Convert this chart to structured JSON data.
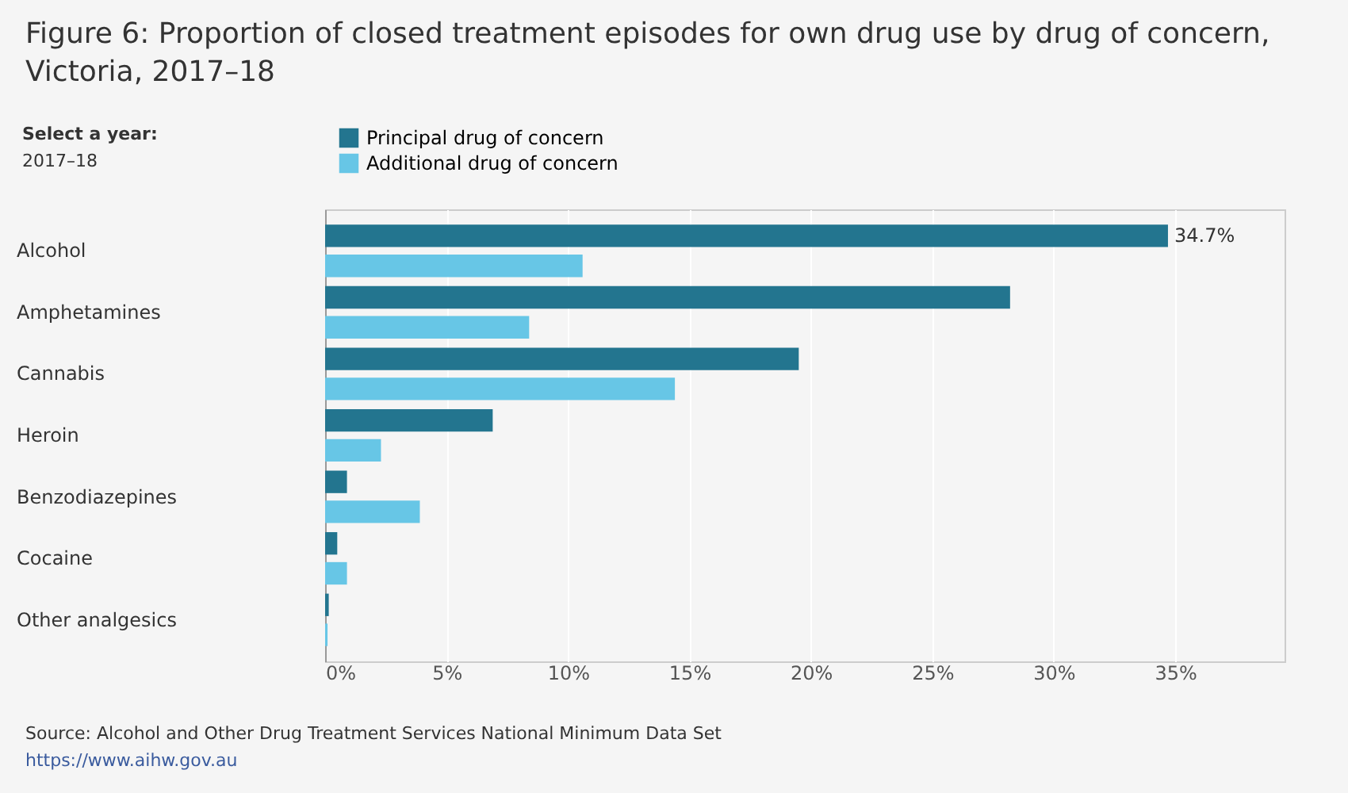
{
  "chart_data": {
    "type": "bar",
    "orientation": "horizontal",
    "title": "Figure 6: Proportion of closed treatment episodes for own drug use by drug of concern, Victoria, 2017–18",
    "annotations": [
      "Select a year:",
      "2017–18",
      "Source: Alcohol and Other Drug Treatment Services National Minimum Data Set",
      "https://www.aihw.gov.au"
    ],
    "categories": [
      "Alcohol",
      "Amphetamines",
      "Cannabis",
      "Heroin",
      "Benzodiazepines",
      "Cocaine",
      "Other analgesics"
    ],
    "series": [
      {
        "name": "Principal drug of concern",
        "color": "#23758f",
        "values": [
          34.7,
          28.2,
          19.5,
          6.9,
          0.9,
          0.5,
          0.15
        ],
        "value_labels": [
          "34.7%",
          null,
          null,
          null,
          null,
          null,
          null
        ]
      },
      {
        "name": "Additional drug of concern",
        "color": "#67c6e6",
        "values": [
          10.6,
          8.4,
          14.4,
          2.3,
          3.9,
          0.9,
          0.1
        ]
      }
    ],
    "xlim": [
      0,
      39.5
    ],
    "xticks": [
      {
        "value": 0,
        "label": "0%"
      },
      {
        "value": 5,
        "label": "5%"
      },
      {
        "value": 10,
        "label": "10%"
      },
      {
        "value": 15,
        "label": "15%"
      },
      {
        "value": 20,
        "label": "20%"
      },
      {
        "value": 25,
        "label": "25%"
      },
      {
        "value": 30,
        "label": "30%"
      },
      {
        "value": 35,
        "label": "35%"
      }
    ],
    "grid": "x",
    "legend": "top left"
  }
}
